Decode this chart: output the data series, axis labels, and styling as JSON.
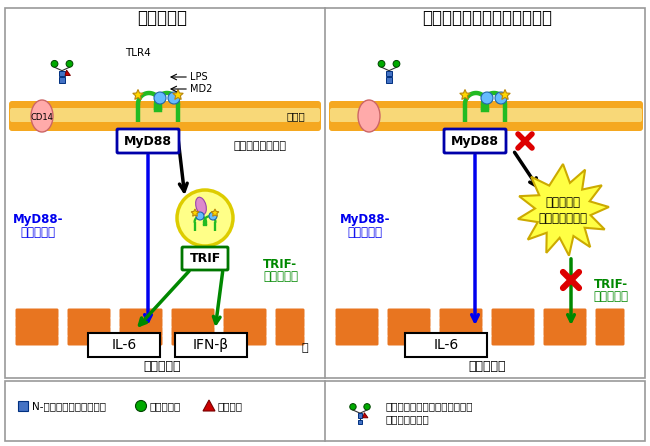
{
  "title_left": "野生型細胞",
  "title_right": "コアフコースを欠損した細胞",
  "bg_color": "#ffffff",
  "membrane_color": "#F5A820",
  "membrane_light": "#F8D878",
  "left_panel": {
    "myD88_label": "MyD88",
    "myD88_pathway_1": "MyD88-",
    "myD88_pathway_2": "依存的経路",
    "trif_label": "TRIF",
    "trif_pathway_1": "TRIF-",
    "trif_pathway_2": "依存的経路",
    "endosome_label": "細胞内へ取り込み",
    "gene_label": "遺伝子発現",
    "IL6_label": "IL-6",
    "IFN_label": "IFN-β",
    "nucleus_label": "核",
    "TLR4_label": "TLR4",
    "LPS_label": "LPS",
    "MD2_label": "MD2",
    "CD14_label": "CD14",
    "saimaku_label": "細胞膜"
  },
  "right_panel": {
    "myD88_label": "MyD88",
    "myD88_pathway_1": "MyD88-",
    "myD88_pathway_2": "依存的経路",
    "trif_pathway_1": "TRIF-",
    "trif_pathway_2": "依存的経路",
    "endosome_inhibit_1": "細胞内への",
    "endosome_inhibit_2": "取り込みが抑制",
    "gene_label": "遺伝子発現",
    "IL6_label": "IL-6"
  },
  "legend": {
    "gnac_label": "N-アセチルグルコサミン",
    "mannose_label": "マンノース",
    "fucose_label": "フコース",
    "core_fucose_label_1": "根元にコアフコースと呼ばれる",
    "core_fucose_label_2": "構造をもつ糖鎖",
    "gnac_color": "#4472C4",
    "mannose_color": "#00AA00",
    "fucose_color": "#CC0000"
  },
  "colors": {
    "blue_arrow": "#0000EE",
    "green_arrow": "#008800",
    "black_arrow": "#000000",
    "red_x": "#DD0000",
    "myD88_border": "#0000AA",
    "trif_border": "#007700",
    "tlr4_color": "#22BB22",
    "cd14_color": "#FFAAAA",
    "endosome_fill": "#FFFF88",
    "endosome_border": "#DDCC00",
    "starburst_fill": "#FFFF44",
    "starburst_border": "#CCAA00",
    "purple_oval": "#DD88CC",
    "orange_nuc": "#E87520",
    "gnac_color": "#4472C4",
    "mannose_color": "#00AA00",
    "fucose_color": "#CC0000",
    "gold_star": "#FFD700"
  }
}
